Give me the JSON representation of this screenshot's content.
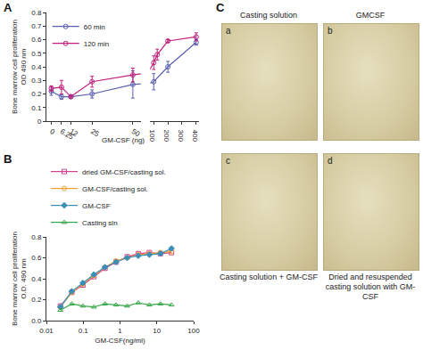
{
  "chart_data": [
    {
      "type": "line",
      "title": "A",
      "xlabel": "GM-CSF (ng)",
      "ylabel": "Bone marrow cell proliferation\nOD 490 nm",
      "xlim": [
        -3,
        55
      ],
      "xticks": [
        0,
        6.25,
        12,
        25,
        50
      ],
      "x2lim": [
        75,
        420
      ],
      "x2ticks": [
        100,
        200,
        300,
        400
      ],
      "ylim": [
        0,
        0.8
      ],
      "yticks": [
        0,
        0.1,
        0.2,
        0.3,
        0.4,
        0.5,
        0.6,
        0.7,
        0.8
      ],
      "grid": false,
      "legend": "top-left",
      "marker": "circle-open",
      "series": [
        {
          "name": "60 min",
          "color": "#5b5fb0",
          "x": [
            0,
            6.25,
            12,
            25,
            50,
            100,
            200,
            400
          ],
          "values": [
            0.22,
            0.18,
            0.18,
            0.2,
            0.27,
            0.29,
            0.4,
            0.58
          ],
          "errors": [
            0.03,
            0.02,
            0.01,
            0.03,
            0.1,
            0.06,
            0.04,
            0.02
          ]
        },
        {
          "name": "120 min",
          "color": "#c0207a",
          "x": [
            0,
            6.25,
            12,
            25,
            50,
            100,
            125,
            200,
            400
          ],
          "values": [
            0.24,
            0.25,
            0.18,
            0.29,
            0.34,
            0.43,
            0.49,
            0.59,
            0.62
          ],
          "errors": [
            0.02,
            0.05,
            0.01,
            0.04,
            0.05,
            0.05,
            0.04,
            0.01,
            0.03
          ]
        }
      ]
    },
    {
      "type": "line",
      "title": "B",
      "xlabel": "GM-CSF(ng/ml)",
      "ylabel": "Bone marrow cell proliferation\nO.D. 490 nm",
      "log": "x",
      "xlim": [
        0.01,
        100
      ],
      "xticks": [
        0.01,
        0.1,
        1,
        10,
        100
      ],
      "ylim": [
        0,
        0.8
      ],
      "yticks": [
        {
          "value": 0,
          "label": "0.0"
        },
        {
          "value": 0.2,
          "label": "0.2"
        },
        {
          "value": 0.4,
          "label": "0.4"
        },
        {
          "value": 0.6,
          "label": "0.6"
        },
        {
          "value": 0.8,
          "label": "0.8"
        }
      ],
      "grid": false,
      "legend": "top",
      "x": [
        0.024,
        0.049,
        0.098,
        0.195,
        0.39,
        0.78,
        1.56,
        3.125,
        6.25,
        12.5,
        25
      ],
      "series": [
        {
          "name": "dried GM-CSF/casting sol.",
          "color": "#d6408a",
          "marker": "square-open",
          "values": [
            0.14,
            0.27,
            0.34,
            0.42,
            0.5,
            0.56,
            0.61,
            0.64,
            0.65,
            0.64,
            0.65
          ]
        },
        {
          "name": "GM-CSF/casting sol.",
          "color": "#f0a030",
          "marker": "circle-open",
          "values": [
            0.13,
            0.27,
            0.35,
            0.43,
            0.51,
            0.57,
            0.6,
            0.63,
            0.64,
            0.65,
            0.66
          ]
        },
        {
          "name": "GM-CSF",
          "color": "#3a8fb7",
          "marker": "diamond",
          "values": [
            0.13,
            0.28,
            0.36,
            0.44,
            0.51,
            0.56,
            0.6,
            0.62,
            0.63,
            0.64,
            0.69
          ]
        },
        {
          "name": "Casting sln",
          "color": "#3aa84a",
          "marker": "triangle-up-open",
          "values": [
            0.1,
            0.16,
            0.14,
            0.13,
            0.16,
            0.15,
            0.14,
            0.17,
            0.15,
            0.16,
            0.15
          ]
        }
      ]
    }
  ],
  "panel_c": {
    "title": "C",
    "images": [
      {
        "label": "a",
        "caption": "Casting solution",
        "caption_position": "top"
      },
      {
        "label": "b",
        "caption": "GMCSF",
        "caption_position": "top"
      },
      {
        "label": "c",
        "caption": "Casting solution + GM-CSF",
        "caption_position": "bottom"
      },
      {
        "label": "d",
        "caption": "Dried and resuspended casting solution with GM-CSF",
        "caption_position": "bottom"
      }
    ]
  }
}
